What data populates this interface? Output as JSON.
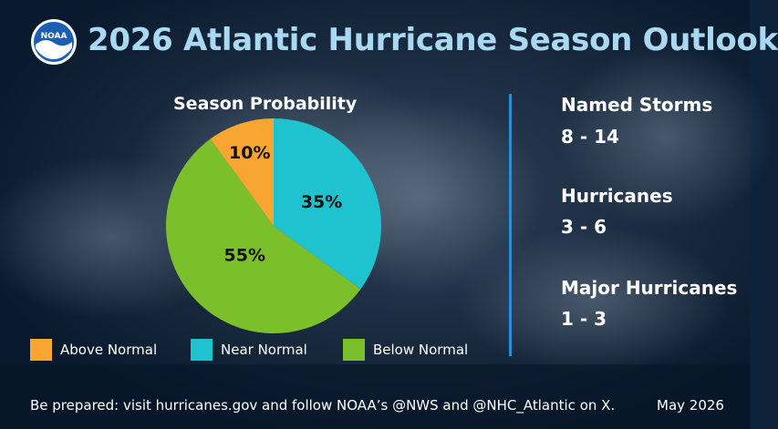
{
  "header": {
    "title": "2026 Atlantic Hurricane Season Outlook",
    "logo_text": "NOAA"
  },
  "colors": {
    "title": "#a9d8f2",
    "above_normal": "#f9a531",
    "near_normal": "#1fc3d0",
    "below_normal": "#7bbf2a",
    "divider": "#2a8ed0"
  },
  "chart_data": {
    "type": "pie",
    "title": "Season Probability",
    "categories": [
      "Above Normal",
      "Near Normal",
      "Below Normal"
    ],
    "values": [
      10,
      35,
      55
    ],
    "labels": [
      "10%",
      "35%",
      "55%"
    ],
    "colors": [
      "#f9a531",
      "#1fc3d0",
      "#7bbf2a"
    ],
    "legend_position": "bottom"
  },
  "stats": [
    {
      "label": "Named Storms",
      "value": "8 - 14"
    },
    {
      "label": "Hurricanes",
      "value": "3 - 6"
    },
    {
      "label": "Major Hurricanes",
      "value": "1 - 3"
    }
  ],
  "footer": {
    "text": "Be prepared: visit hurricanes.gov and follow NOAA’s @NWS and @NHC_Atlantic on X.",
    "date": "May 2026"
  }
}
